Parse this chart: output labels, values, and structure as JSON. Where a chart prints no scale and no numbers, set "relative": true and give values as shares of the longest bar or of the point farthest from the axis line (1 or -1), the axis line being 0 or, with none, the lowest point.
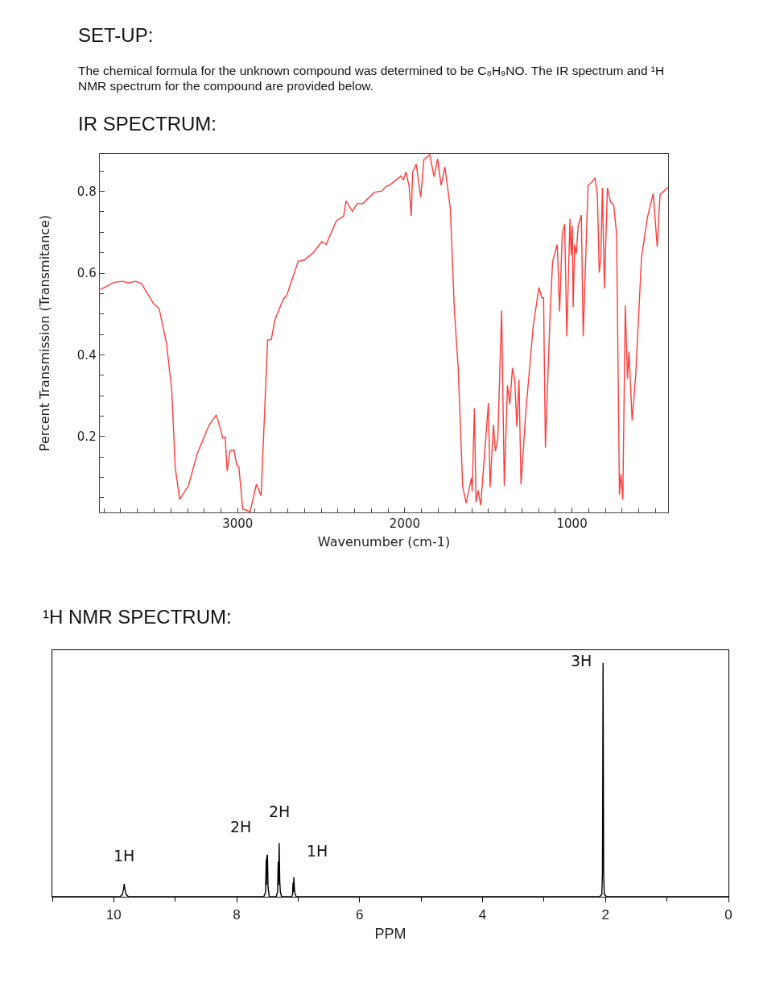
{
  "chart_data": [
    {
      "type": "line",
      "title": "IR SPECTRUM:",
      "annotations": [
        "SET-UP:",
        "The chemical formula for the unknown compound was determined to be C₈H₉NO. The IR spectrum and ¹H NMR spectrum for the compound are provided below."
      ],
      "xlabel": "Wavenumber (cm-1)",
      "ylabel": "Percent Transmission (Transmitance)",
      "series": [
        {
          "color": "#ff3b3b",
          "x": [
            3821,
            3742,
            3689,
            3654,
            3610,
            3575,
            3505,
            3470,
            3426,
            3395,
            3374,
            3347,
            3295,
            3242,
            3172,
            3128,
            3102,
            3090,
            3075,
            3063,
            3046,
            3023,
            3005,
            2993,
            2970,
            2944,
            2926,
            2888,
            2860,
            2821,
            2799,
            2778,
            2726,
            2708,
            2638,
            2603,
            2550,
            2497,
            2471,
            2410,
            2366,
            2352,
            2313,
            2287,
            2252,
            2182,
            2138,
            2111,
            2093,
            2023,
            2009,
            1993,
            1974,
            1962,
            1953,
            1932,
            1905,
            1886,
            1851,
            1825,
            1804,
            1783,
            1760,
            1728,
            1704,
            1681,
            1654,
            1633,
            1602,
            1597,
            1584,
            1574,
            1562,
            1546,
            1500,
            1490,
            1470,
            1458,
            1444,
            1421,
            1405,
            1386,
            1372,
            1356,
            1342,
            1330,
            1317,
            1305,
            1277,
            1233,
            1198,
            1180,
            1170,
            1159,
            1131,
            1116,
            1088,
            1074,
            1058,
            1044,
            1031,
            1012,
            1005,
            998,
            993,
            984,
            974,
            963,
            944,
            933,
            904,
            883,
            862,
            848,
            837,
            827,
            818,
            806,
            788,
            769,
            751,
            733,
            716,
            707,
            696,
            681,
            668,
            659,
            640,
            619,
            584,
            549,
            514,
            490,
            473,
            426
          ],
          "values": [
            0.56,
            0.577,
            0.58,
            0.576,
            0.58,
            0.574,
            0.526,
            0.513,
            0.428,
            0.316,
            0.125,
            0.046,
            0.079,
            0.158,
            0.227,
            0.253,
            0.217,
            0.196,
            0.199,
            0.115,
            0.165,
            0.167,
            0.129,
            0.126,
            0.022,
            0.019,
            0.015,
            0.083,
            0.055,
            0.436,
            0.437,
            0.485,
            0.537,
            0.544,
            0.629,
            0.632,
            0.649,
            0.677,
            0.67,
            0.728,
            0.74,
            0.777,
            0.751,
            0.77,
            0.77,
            0.798,
            0.801,
            0.813,
            0.815,
            0.838,
            0.828,
            0.848,
            0.812,
            0.74,
            0.848,
            0.867,
            0.786,
            0.878,
            0.89,
            0.836,
            0.88,
            0.815,
            0.86,
            0.759,
            0.513,
            0.368,
            0.078,
            0.037,
            0.098,
            0.065,
            0.269,
            0.039,
            0.068,
            0.032,
            0.282,
            0.075,
            0.229,
            0.164,
            0.193,
            0.508,
            0.079,
            0.325,
            0.279,
            0.368,
            0.335,
            0.224,
            0.339,
            0.083,
            0.256,
            0.466,
            0.565,
            0.539,
            0.54,
            0.173,
            0.499,
            0.628,
            0.67,
            0.506,
            0.697,
            0.72,
            0.445,
            0.733,
            0.644,
            0.716,
            0.516,
            0.67,
            0.647,
            0.716,
            0.742,
            0.445,
            0.815,
            0.822,
            0.833,
            0.792,
            0.601,
            0.638,
            0.809,
            0.562,
            0.809,
            0.774,
            0.768,
            0.697,
            0.058,
            0.108,
            0.045,
            0.521,
            0.341,
            0.408,
            0.239,
            0.348,
            0.638,
            0.736,
            0.795,
            0.664,
            0.792,
            0.81
          ]
        }
      ],
      "xlim": [
        3825,
        425
      ],
      "xticks": [
        {
          "value": 3800,
          "label": null
        },
        {
          "value": 3700,
          "label": null
        },
        {
          "value": 3600,
          "label": null
        },
        {
          "value": 3500,
          "label": null
        },
        {
          "value": 3400,
          "label": null
        },
        {
          "value": 3300,
          "label": null
        },
        {
          "value": 3200,
          "label": null
        },
        {
          "value": 3100,
          "label": null
        },
        3000,
        {
          "value": 2900,
          "label": null
        },
        {
          "value": 2800,
          "label": null
        },
        {
          "value": 2700,
          "label": null
        },
        {
          "value": 2600,
          "label": null
        },
        {
          "value": 2500,
          "label": null
        },
        {
          "value": 2400,
          "label": null
        },
        {
          "value": 2300,
          "label": null
        },
        {
          "value": 2200,
          "label": null
        },
        {
          "value": 2100,
          "label": null
        },
        2000,
        {
          "value": 1900,
          "label": null
        },
        {
          "value": 1800,
          "label": null
        },
        {
          "value": 1700,
          "label": null
        },
        {
          "value": 1600,
          "label": null
        },
        {
          "value": 1500,
          "label": null
        },
        {
          "value": 1400,
          "label": null
        },
        {
          "value": 1300,
          "label": null
        },
        {
          "value": 1200,
          "label": null
        },
        {
          "value": 1100,
          "label": null
        },
        1000,
        {
          "value": 900,
          "label": null
        },
        {
          "value": 800,
          "label": null
        },
        {
          "value": 700,
          "label": null
        },
        {
          "value": 600,
          "label": null
        },
        {
          "value": 500,
          "label": null
        }
      ],
      "ylim": [
        0.014,
        0.892
      ],
      "yticks": [
        {
          "value": 0.05,
          "label": null
        },
        {
          "value": 0.1,
          "label": null
        },
        {
          "value": 0.15,
          "label": null
        },
        0.2,
        {
          "value": 0.25,
          "label": null
        },
        {
          "value": 0.3,
          "label": null
        },
        {
          "value": 0.35,
          "label": null
        },
        0.4,
        {
          "value": 0.45,
          "label": null
        },
        {
          "value": 0.5,
          "label": null
        },
        {
          "value": 0.55,
          "label": null
        },
        0.6,
        {
          "value": 0.65,
          "label": null
        },
        {
          "value": 0.7,
          "label": null
        },
        {
          "value": 0.75,
          "label": null
        },
        0.8,
        {
          "value": 0.85,
          "label": null
        }
      ],
      "marker": "none",
      "line_style": "solid"
    },
    {
      "type": "line",
      "title": "¹H NMR SPECTRUM:",
      "xlabel": "PPM",
      "relative": true,
      "annotations": [
        {
          "text": "1H",
          "x": 9.83,
          "y": 0.055
        },
        {
          "text": "2H",
          "x": 7.5,
          "y": 0.18
        },
        {
          "text": "2H",
          "x": 7.31,
          "y": 0.23
        },
        {
          "text": "1H",
          "x": 7.07,
          "y": 0.083
        },
        {
          "text": "3H",
          "x": 2.04,
          "y": 1
        }
      ],
      "series": [
        {
          "color": "#000000",
          "x": [
            11,
            9.9,
            9.86,
            9.84,
            9.83,
            9.82,
            9.8,
            9.76,
            7.56,
            7.53,
            7.52,
            7.515,
            7.51,
            7.5,
            7.49,
            7.47,
            7.36,
            7.335,
            7.325,
            7.32,
            7.315,
            7.31,
            7.3,
            7.29,
            7.27,
            7.11,
            7.09,
            7.085,
            7.08,
            7.075,
            7.07,
            7.06,
            7.05,
            7.03,
            2.1,
            2.06,
            2.05,
            2.04,
            2.03,
            2.02,
            1.98,
            0
          ],
          "values": [
            0,
            0,
            0.01,
            0.035,
            0.055,
            0.035,
            0.01,
            0,
            0,
            0.02,
            0.16,
            0.05,
            0.17,
            0.18,
            0.04,
            0,
            0,
            0.02,
            0.15,
            0.05,
            0.12,
            0.23,
            0.07,
            0.02,
            0,
            0,
            0.01,
            0.06,
            0.02,
            0.05,
            0.083,
            0.03,
            0.01,
            0,
            0,
            0.01,
            0.1,
            1,
            0.1,
            0.01,
            0,
            0
          ]
        }
      ],
      "xlim": [
        11,
        0
      ],
      "xticks": [
        {
          "value": 11,
          "label": null
        },
        10,
        {
          "value": 9,
          "label": null
        },
        8,
        {
          "value": 7,
          "label": null
        },
        6,
        {
          "value": 5,
          "label": null
        },
        4,
        {
          "value": 3,
          "label": null
        },
        2,
        {
          "value": 1,
          "label": null
        },
        0
      ],
      "marker": "none",
      "line_style": "solid"
    }
  ]
}
